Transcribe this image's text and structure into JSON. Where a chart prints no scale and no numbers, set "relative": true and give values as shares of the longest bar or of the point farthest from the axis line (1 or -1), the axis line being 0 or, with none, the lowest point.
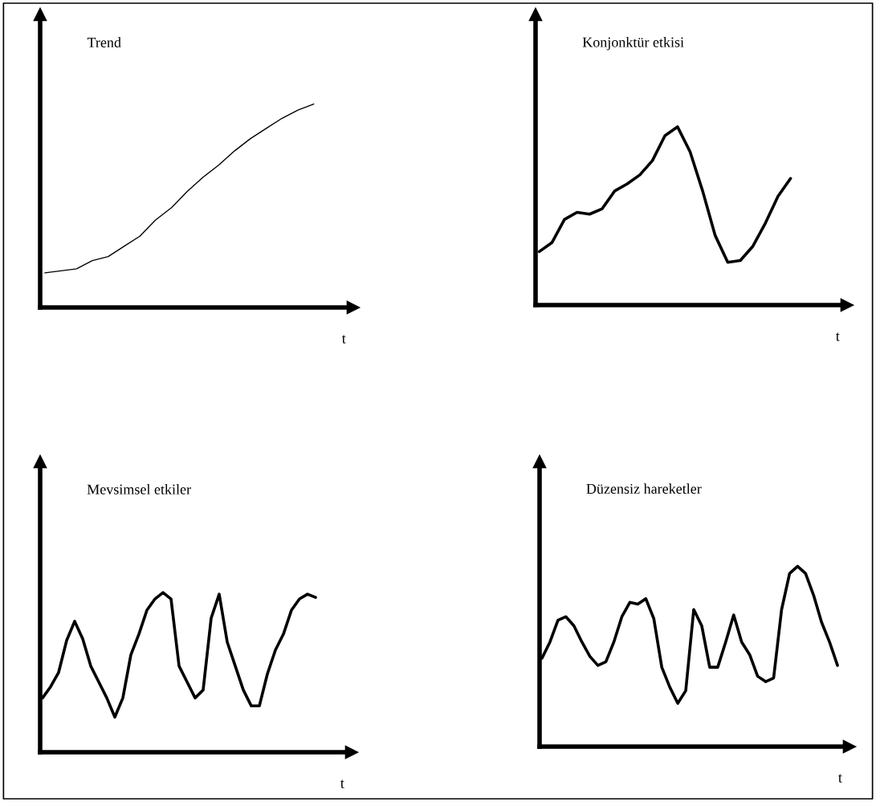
{
  "chart_data": [
    {
      "type": "line",
      "title": "Trend",
      "xlabel": "t",
      "relative": true,
      "categories": [
        null,
        null,
        null,
        null,
        null,
        null,
        null,
        null,
        null,
        null,
        null,
        null,
        null,
        null,
        null,
        null,
        null,
        null,
        null,
        null
      ],
      "series": [
        {
          "color": "#000000",
          "values": [
            0.17,
            0.18,
            0.19,
            0.23,
            0.25,
            0.3,
            0.35,
            0.43,
            0.49,
            0.57,
            0.64,
            0.7,
            0.77,
            0.83,
            0.88,
            0.93,
            0.97,
            1,
            null,
            null
          ]
        }
      ]
    },
    {
      "type": "line",
      "title": "Konjonktür etkisi",
      "xlabel": "t",
      "relative": true,
      "categories": [
        null,
        null,
        null,
        null,
        null,
        null,
        null,
        null,
        null,
        null,
        null,
        null,
        null,
        null,
        null,
        null,
        null,
        null,
        null,
        null,
        null,
        null,
        null,
        null,
        null
      ],
      "series": [
        {
          "color": "#000000",
          "values": [
            0.3,
            0.35,
            0.48,
            0.52,
            0.51,
            0.54,
            0.64,
            0.68,
            0.73,
            0.81,
            0.95,
            1,
            0.86,
            0.64,
            0.39,
            0.24,
            0.25,
            0.33,
            0.46,
            0.61,
            0.71,
            null,
            null,
            null,
            null
          ]
        }
      ]
    },
    {
      "type": "line",
      "title": "Mevsimsel etkiler",
      "xlabel": "t",
      "relative": true,
      "categories": [
        null,
        null,
        null,
        null,
        null,
        null,
        null,
        null,
        null,
        null,
        null,
        null,
        null,
        null,
        null,
        null,
        null,
        null,
        null,
        null,
        null,
        null,
        null,
        null,
        null,
        null,
        null,
        null,
        null,
        null,
        null,
        null,
        null,
        null,
        null,
        null,
        null,
        null,
        null
      ],
      "series": [
        {
          "color": "#000000",
          "values": [
            0.34,
            0.41,
            0.5,
            0.7,
            0.82,
            0.71,
            0.54,
            0.44,
            0.34,
            0.22,
            0.34,
            0.61,
            0.74,
            0.89,
            0.96,
            1,
            0.96,
            0.54,
            0.44,
            0.34,
            0.39,
            0.84,
            0.99,
            0.69,
            0.54,
            0.39,
            0.29,
            0.29,
            0.49,
            0.64,
            0.74,
            0.89,
            0.96,
            0.99,
            0.97,
            null,
            null,
            null,
            null
          ]
        }
      ]
    },
    {
      "type": "line",
      "title": "Düzensiz hareketler",
      "xlabel": "t",
      "relative": true,
      "categories": [
        null,
        null,
        null,
        null,
        null,
        null,
        null,
        null,
        null,
        null,
        null,
        null,
        null,
        null,
        null,
        null,
        null,
        null,
        null,
        null,
        null,
        null,
        null,
        null,
        null,
        null,
        null,
        null,
        null,
        null,
        null,
        null,
        null,
        null,
        null,
        null,
        null,
        null,
        null
      ],
      "series": [
        {
          "color": "#000000",
          "values": [
            0.49,
            0.58,
            0.7,
            0.72,
            0.67,
            0.58,
            0.5,
            0.45,
            0.47,
            0.58,
            0.72,
            0.8,
            0.79,
            0.82,
            0.71,
            0.44,
            0.33,
            0.24,
            0.31,
            0.76,
            0.67,
            0.44,
            0.44,
            0.58,
            0.73,
            0.58,
            0.51,
            0.39,
            0.36,
            0.38,
            0.76,
            0.96,
            1,
            0.96,
            0.84,
            0.69,
            0.58,
            0.45,
            null
          ]
        }
      ]
    }
  ]
}
